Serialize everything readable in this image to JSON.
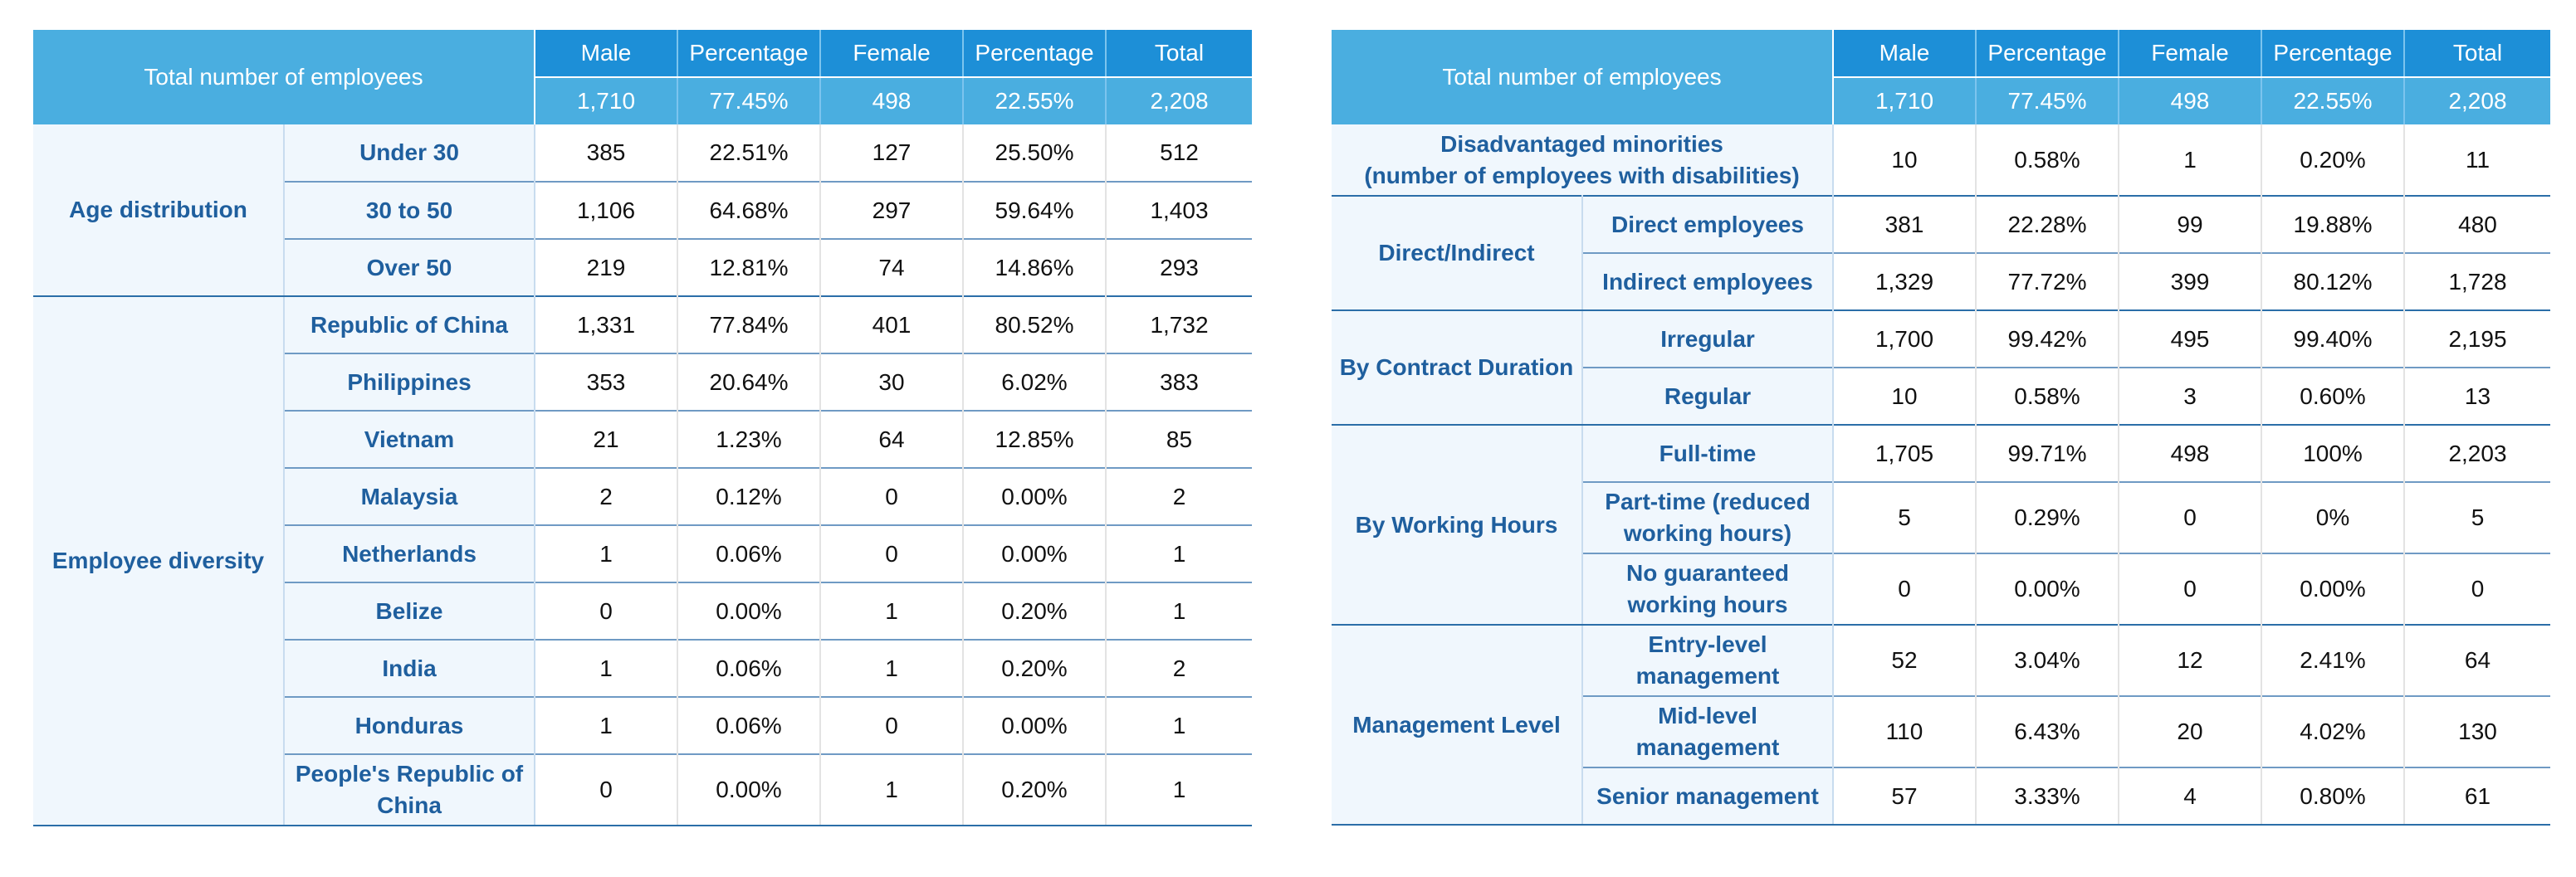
{
  "left_table": {
    "header": {
      "title": "Total number of employees",
      "columns": [
        "Male",
        "Percentage",
        "Female",
        "Percentage",
        "Total"
      ],
      "totals": [
        "1,710",
        "77.45%",
        "498",
        "22.55%",
        "2,208"
      ]
    },
    "groups": [
      {
        "category": "Age distribution",
        "rows": [
          {
            "label": "Under 30",
            "values": [
              "385",
              "22.51%",
              "127",
              "25.50%",
              "512"
            ]
          },
          {
            "label": "30 to 50",
            "values": [
              "1,106",
              "64.68%",
              "297",
              "59.64%",
              "1,403"
            ]
          },
          {
            "label": "Over 50",
            "values": [
              "219",
              "12.81%",
              "74",
              "14.86%",
              "293"
            ]
          }
        ]
      },
      {
        "category": "Employee diversity",
        "rows": [
          {
            "label": "Republic of China",
            "values": [
              "1,331",
              "77.84%",
              "401",
              "80.52%",
              "1,732"
            ]
          },
          {
            "label": "Philippines",
            "values": [
              "353",
              "20.64%",
              "30",
              "6.02%",
              "383"
            ]
          },
          {
            "label": "Vietnam",
            "values": [
              "21",
              "1.23%",
              "64",
              "12.85%",
              "85"
            ]
          },
          {
            "label": "Malaysia",
            "values": [
              "2",
              "0.12%",
              "0",
              "0.00%",
              "2"
            ]
          },
          {
            "label": "Netherlands",
            "values": [
              "1",
              "0.06%",
              "0",
              "0.00%",
              "1"
            ]
          },
          {
            "label": "Belize",
            "values": [
              "0",
              "0.00%",
              "1",
              "0.20%",
              "1"
            ]
          },
          {
            "label": "India",
            "values": [
              "1",
              "0.06%",
              "1",
              "0.20%",
              "2"
            ]
          },
          {
            "label": "Honduras",
            "values": [
              "1",
              "0.06%",
              "0",
              "0.00%",
              "1"
            ]
          },
          {
            "label": "People's Republic of China",
            "values": [
              "0",
              "0.00%",
              "1",
              "0.20%",
              "1"
            ]
          }
        ]
      }
    ]
  },
  "right_table": {
    "header": {
      "title": "Total number of employees",
      "columns": [
        "Male",
        "Percentage",
        "Female",
        "Percentage",
        "Total"
      ],
      "totals": [
        "1,710",
        "77.45%",
        "498",
        "22.55%",
        "2,208"
      ]
    },
    "single_row": {
      "label_line1": "Disadvantaged minorities",
      "label_line2": "(number of employees with disabilities)",
      "values": [
        "10",
        "0.58%",
        "1",
        "0.20%",
        "11"
      ]
    },
    "groups": [
      {
        "category": "Direct/Indirect",
        "rows": [
          {
            "label": "Direct employees",
            "values": [
              "381",
              "22.28%",
              "99",
              "19.88%",
              "480"
            ]
          },
          {
            "label": "Indirect employees",
            "values": [
              "1,329",
              "77.72%",
              "399",
              "80.12%",
              "1,728"
            ]
          }
        ]
      },
      {
        "category": "By Contract Duration",
        "rows": [
          {
            "label": "Irregular",
            "values": [
              "1,700",
              "99.42%",
              "495",
              "99.40%",
              "2,195"
            ]
          },
          {
            "label": "Regular",
            "values": [
              "10",
              "0.58%",
              "3",
              "0.60%",
              "13"
            ]
          }
        ]
      },
      {
        "category": "By Working Hours",
        "rows": [
          {
            "label": "Full-time",
            "values": [
              "1,705",
              "99.71%",
              "498",
              "100%",
              "2,203"
            ]
          },
          {
            "label": "Part-time (reduced working hours)",
            "values": [
              "5",
              "0.29%",
              "0",
              "0%",
              "5"
            ]
          },
          {
            "label": "No guaranteed working hours",
            "values": [
              "0",
              "0.00%",
              "0",
              "0.00%",
              "0"
            ]
          }
        ]
      },
      {
        "category": "Management Level",
        "rows": [
          {
            "label": "Entry-level management",
            "values": [
              "52",
              "3.04%",
              "12",
              "2.41%",
              "64"
            ]
          },
          {
            "label": "Mid-level management",
            "values": [
              "110",
              "6.43%",
              "20",
              "4.02%",
              "130"
            ]
          },
          {
            "label": "Senior management",
            "values": [
              "57",
              "3.33%",
              "4",
              "0.80%",
              "61"
            ]
          }
        ]
      }
    ]
  }
}
